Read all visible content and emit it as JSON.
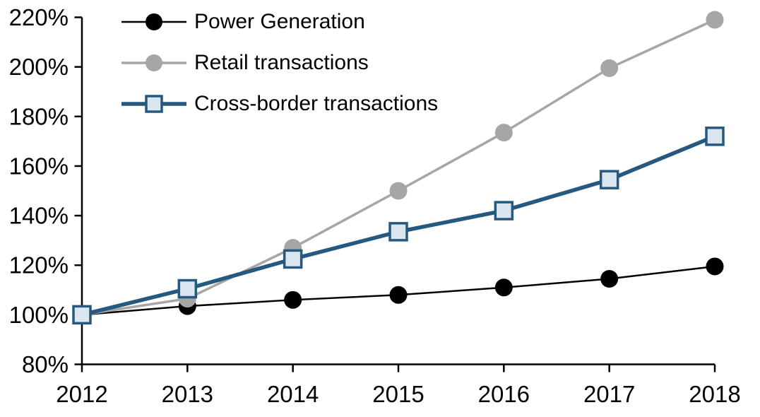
{
  "chart_data": {
    "type": "line",
    "title": "",
    "xlabel": "",
    "ylabel": "",
    "x": [
      2012,
      2013,
      2014,
      2015,
      2016,
      2017,
      2018
    ],
    "x_tick_labels": [
      "2012",
      "2013",
      "2014",
      "2015",
      "2016",
      "2017",
      "2018"
    ],
    "y_ticks": [
      80,
      100,
      120,
      140,
      160,
      180,
      200,
      220
    ],
    "y_tick_labels": [
      "80%",
      "100%",
      "120%",
      "140%",
      "160%",
      "180%",
      "200%",
      "220%"
    ],
    "ylim": [
      80,
      220
    ],
    "grid": false,
    "legend_position": "top-left-inside",
    "axis_color": "#000000",
    "background_color": "#ffffff",
    "series": [
      {
        "name": "Power Generation",
        "color": "#000000",
        "marker": "circle",
        "marker_fill": "#000000",
        "line_width": 2.5,
        "values": [
          100,
          103.5,
          106,
          108,
          111,
          114.5,
          119.5
        ]
      },
      {
        "name": "Retail transactions",
        "color": "#a6a6a6",
        "marker": "circle",
        "marker_fill": "#a6a6a6",
        "line_width": 3.5,
        "values": [
          100,
          106.5,
          127,
          150,
          173.5,
          199.5,
          219
        ]
      },
      {
        "name": "Cross-border transactions",
        "color": "#26597f",
        "marker": "square",
        "marker_fill": "#dce6f1",
        "line_width": 5.5,
        "values": [
          100,
          110.5,
          122.5,
          133.5,
          142,
          154.5,
          172
        ]
      }
    ]
  }
}
